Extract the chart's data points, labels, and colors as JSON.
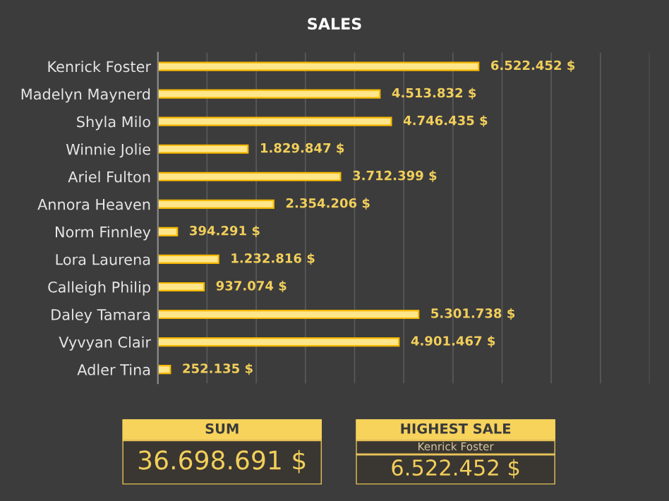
{
  "chart_data": [
    {
      "type": "bar",
      "orientation": "horizontal",
      "title": "SALES",
      "categories": [
        "Kenrick Foster",
        "Madelyn Maynerd",
        "Shyla Milo",
        "Winnie Jolie",
        "Ariel Fulton",
        "Annora Heaven",
        "Norm Finnley",
        "Lora Laurena",
        "Calleigh Philip",
        "Daley Tamara",
        "Vyvyan Clair",
        "Adler Tina"
      ],
      "values": [
        6522452,
        4513832,
        4746435,
        1829847,
        3712399,
        2354206,
        394291,
        1232816,
        937074,
        5301738,
        4901467,
        252135
      ],
      "value_labels": [
        "6.522.452 $",
        "4.513.832 $",
        "4.746.435 $",
        "1.829.847 $",
        "3.712.399 $",
        "2.354.206 $",
        "394.291 $",
        "1.232.816 $",
        "937.074 $",
        "5.301.738 $",
        "4.901.467 $",
        "252.135 $"
      ],
      "color": "#ffe68a",
      "xlim": [
        0,
        10000000
      ],
      "xticks": [
        {
          "value": 0,
          "label": null
        },
        {
          "value": 1000000,
          "label": null
        },
        {
          "value": 2000000,
          "label": null
        },
        {
          "value": 3000000,
          "label": null
        },
        {
          "value": 4000000,
          "label": null
        },
        {
          "value": 5000000,
          "label": null
        },
        {
          "value": 6000000,
          "label": null
        },
        {
          "value": 7000000,
          "label": null
        },
        {
          "value": 8000000,
          "label": null
        },
        {
          "value": 9000000,
          "label": null
        },
        {
          "value": 10000000,
          "label": null
        }
      ],
      "grid": "x",
      "tick_labels": "y"
    },
    {
      "type": "other",
      "title": "SUM",
      "annotations": [
        "36.698.691 $"
      ]
    },
    {
      "type": "other",
      "title": "HIGHEST SALE",
      "annotations": [
        "Kenrick Foster",
        "6.522.452 $"
      ]
    }
  ]
}
